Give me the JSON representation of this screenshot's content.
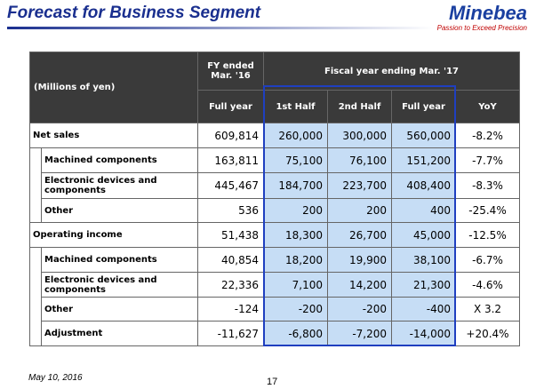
{
  "header": {
    "title": "Forecast for Business Segment",
    "logo": "Minebea",
    "tagline": "Passion to Exceed Precision"
  },
  "table": {
    "unit": "(Millions of yen)",
    "group_headers": [
      "FY ended Mar. '16",
      "Fiscal year ending Mar. '17"
    ],
    "columns": [
      "Full year",
      "1st Half",
      "2nd Half",
      "Full year",
      "YoY"
    ],
    "sections": [
      {
        "rows": [
          [
            "Net sales",
            "609,814",
            "260,000",
            "300,000",
            "560,000",
            "-8.2%"
          ],
          [
            "Machined components",
            "163,811",
            "75,100",
            "76,100",
            "151,200",
            "-7.7%"
          ],
          [
            "Electronic devices and components",
            "445,467",
            "184,700",
            "223,700",
            "408,400",
            "-8.3%"
          ],
          [
            "Other",
            "536",
            "200",
            "200",
            "400",
            "-25.4%"
          ]
        ]
      },
      {
        "rows": [
          [
            "Operating income",
            "51,438",
            "18,300",
            "26,700",
            "45,000",
            "-12.5%"
          ],
          [
            "Machined components",
            "40,854",
            "18,200",
            "19,900",
            "38,100",
            "-6.7%"
          ],
          [
            "Electronic devices and components",
            "22,336",
            "7,100",
            "14,200",
            "21,300",
            "-4.6%"
          ],
          [
            "Other",
            "-124",
            "-200",
            "-200",
            "-400",
            "X 3.2"
          ],
          [
            "Adjustment",
            "-11,627",
            "-6,800",
            "-7,200",
            "-14,000",
            "+20.4%"
          ]
        ]
      }
    ]
  },
  "footer": {
    "date": "May 10, 2016",
    "page": "17"
  }
}
